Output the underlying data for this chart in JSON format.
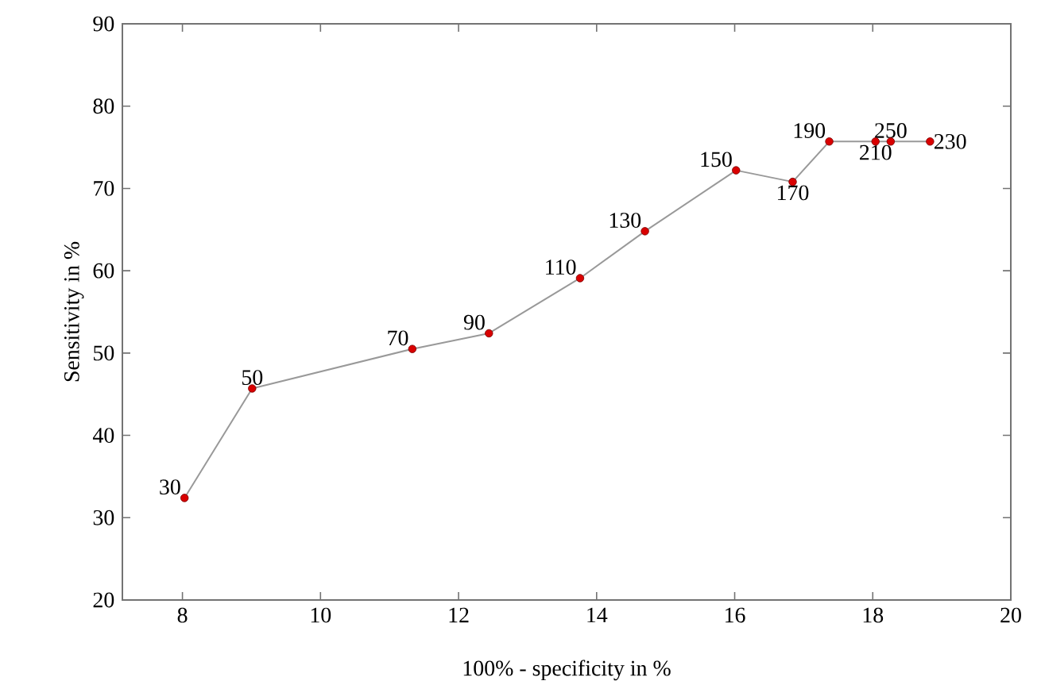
{
  "chart_data": {
    "type": "line",
    "xlabel": "100% - specificity in %",
    "ylabel": "Sensitivity in %",
    "xlim": [
      7.13,
      20
    ],
    "ylim": [
      20,
      90
    ],
    "xticks": [
      8,
      10,
      12,
      14,
      16,
      18,
      20
    ],
    "yticks": [
      20,
      30,
      40,
      50,
      60,
      70,
      80,
      90
    ],
    "grid": false,
    "marker": "circle",
    "line_style": "solid",
    "series": [
      {
        "color": "#999999",
        "x": [
          8.03,
          9.01,
          11.33,
          12.44,
          13.76,
          14.7,
          16.02,
          16.84,
          17.37,
          18.04,
          18.26,
          18.83
        ],
        "values": [
          32.4,
          45.7,
          50.5,
          52.4,
          59.1,
          64.8,
          72.2,
          70.8,
          75.7,
          75.7,
          75.7,
          75.7
        ]
      }
    ],
    "annotations": [
      {
        "text": "30",
        "x": 8.03,
        "y": 32.4
      },
      {
        "text": "50",
        "x": 9.01,
        "y": 45.7
      },
      {
        "text": "70",
        "x": 11.33,
        "y": 50.5
      },
      {
        "text": "90",
        "x": 12.44,
        "y": 52.4
      },
      {
        "text": "110",
        "x": 13.76,
        "y": 59.1
      },
      {
        "text": "130",
        "x": 14.7,
        "y": 64.8
      },
      {
        "text": "150",
        "x": 16.02,
        "y": 72.2
      },
      {
        "text": "170",
        "x": 16.84,
        "y": 70.8
      },
      {
        "text": "190",
        "x": 17.37,
        "y": 75.7
      },
      {
        "text": "210",
        "x": 18.04,
        "y": 75.7
      },
      {
        "text": "250",
        "x": 18.26,
        "y": 75.7
      },
      {
        "text": "230",
        "x": 18.83,
        "y": 75.7
      }
    ]
  }
}
